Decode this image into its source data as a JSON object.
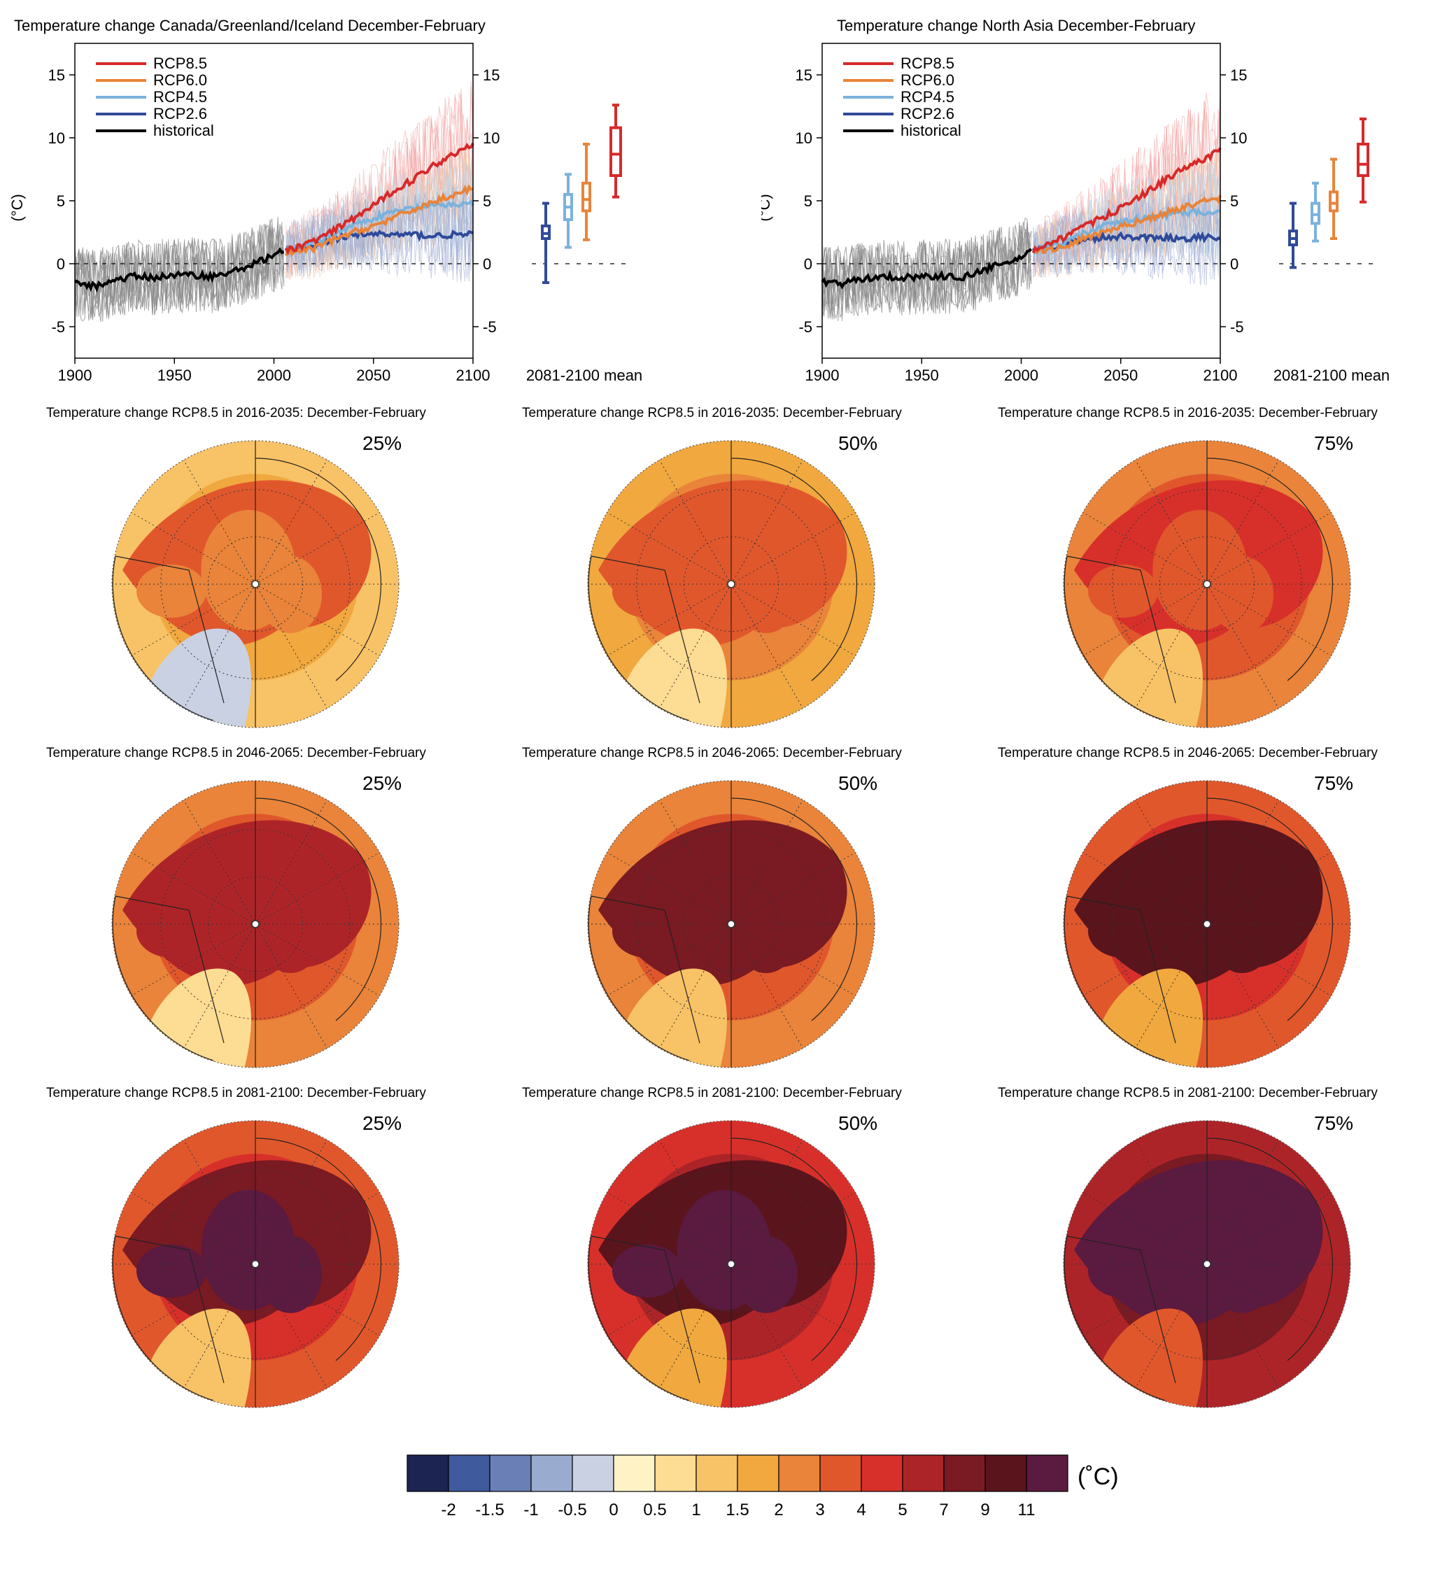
{
  "timeseries_panels": [
    {
      "title": "Temperature change Canada/Greenland/Iceland December-February",
      "ylabel": "(°C)",
      "boxplot_xlabel": "2081-2100 mean",
      "yticks": [
        "15",
        "10",
        "5",
        "0",
        "-5"
      ],
      "xticks": [
        "1900",
        "1950",
        "2000",
        "2050",
        "2100"
      ]
    },
    {
      "title": "Temperature change North Asia December-February",
      "ylabel": "(°C)",
      "boxplot_xlabel": "2081-2100 mean",
      "yticks": [
        "15",
        "10",
        "5",
        "0",
        "-5"
      ],
      "xticks": [
        "1900",
        "1950",
        "2000",
        "2050",
        "2100"
      ]
    }
  ],
  "legend": [
    {
      "label": "RCP8.5",
      "color": "#d62a2a"
    },
    {
      "label": "RCP6.0",
      "color": "#e8843a"
    },
    {
      "label": "RCP4.5",
      "color": "#7bb2dc"
    },
    {
      "label": "RCP2.6",
      "color": "#2f4a9a"
    },
    {
      "label": "historical",
      "color": "#000000"
    }
  ],
  "chart_data": [
    {
      "type": "line",
      "title": "Temperature change Canada/Greenland/Iceland December-February",
      "ylabel": "(°C)",
      "xlim": [
        1900,
        2100
      ],
      "ylim": [
        -7.5,
        17.5
      ],
      "series": [
        {
          "name": "historical",
          "x": [
            1900,
            1910,
            1920,
            1930,
            1940,
            1950,
            1960,
            1970,
            1980,
            1990,
            2000,
            2005
          ],
          "y": [
            -1.5,
            -1.8,
            -1.3,
            -1.0,
            -1.1,
            -0.9,
            -0.9,
            -1.0,
            -0.6,
            0.0,
            0.7,
            1.0
          ]
        },
        {
          "name": "RCP8.5",
          "x": [
            2006,
            2020,
            2030,
            2040,
            2050,
            2060,
            2070,
            2080,
            2090,
            2100
          ],
          "y": [
            1.0,
            1.8,
            2.6,
            3.6,
            4.6,
            5.8,
            6.7,
            7.8,
            8.7,
            9.6
          ]
        },
        {
          "name": "RCP6.0",
          "x": [
            2006,
            2020,
            2030,
            2040,
            2050,
            2060,
            2070,
            2080,
            2090,
            2100
          ],
          "y": [
            0.8,
            1.2,
            1.9,
            2.5,
            3.0,
            3.6,
            4.3,
            4.9,
            5.5,
            6.0
          ]
        },
        {
          "name": "RCP4.5",
          "x": [
            2006,
            2020,
            2030,
            2040,
            2050,
            2060,
            2070,
            2080,
            2090,
            2100
          ],
          "y": [
            1.0,
            1.6,
            2.4,
            3.1,
            3.6,
            4.1,
            4.4,
            4.6,
            4.7,
            4.8
          ]
        },
        {
          "name": "RCP2.6",
          "x": [
            2006,
            2020,
            2030,
            2040,
            2050,
            2060,
            2070,
            2080,
            2090,
            2100
          ],
          "y": [
            1.0,
            1.5,
            2.0,
            2.2,
            2.4,
            2.3,
            2.3,
            2.2,
            2.3,
            2.3
          ]
        }
      ],
      "boxplots_2081_2100_mean": [
        {
          "name": "RCP2.6",
          "whisker_low": -1.5,
          "q1": 2.0,
          "median": 2.4,
          "q3": 3.0,
          "whisker_high": 4.8
        },
        {
          "name": "RCP4.5",
          "whisker_low": 1.3,
          "q1": 3.5,
          "median": 4.5,
          "q3": 5.5,
          "whisker_high": 7.1
        },
        {
          "name": "RCP6.0",
          "whisker_low": 1.9,
          "q1": 4.2,
          "median": 5.1,
          "q3": 6.4,
          "whisker_high": 9.5
        },
        {
          "name": "RCP8.5",
          "whisker_low": 5.3,
          "q1": 7.0,
          "median": 8.7,
          "q3": 10.8,
          "whisker_high": 12.6
        }
      ]
    },
    {
      "type": "line",
      "title": "Temperature change North Asia December-February",
      "ylabel": "(°C)",
      "xlim": [
        1900,
        2100
      ],
      "ylim": [
        -7.5,
        17.5
      ],
      "series": [
        {
          "name": "historical",
          "x": [
            1900,
            1910,
            1920,
            1930,
            1940,
            1950,
            1960,
            1970,
            1980,
            1990,
            2000,
            2005
          ],
          "y": [
            -1.4,
            -1.6,
            -1.2,
            -1.0,
            -1.1,
            -1.0,
            -1.0,
            -1.1,
            -0.6,
            0.0,
            0.4,
            1.0
          ]
        },
        {
          "name": "RCP8.5",
          "x": [
            2006,
            2020,
            2030,
            2040,
            2050,
            2060,
            2070,
            2080,
            2090,
            2100
          ],
          "y": [
            1.0,
            2.0,
            2.8,
            3.6,
            4.4,
            5.4,
            6.4,
            7.4,
            8.2,
            9.0
          ]
        },
        {
          "name": "RCP6.0",
          "x": [
            2006,
            2020,
            2030,
            2040,
            2050,
            2060,
            2070,
            2080,
            2090,
            2100
          ],
          "y": [
            0.9,
            1.3,
            1.9,
            2.4,
            2.9,
            3.4,
            3.9,
            4.4,
            4.9,
            5.2
          ]
        },
        {
          "name": "RCP4.5",
          "x": [
            2006,
            2020,
            2030,
            2040,
            2050,
            2060,
            2070,
            2080,
            2090,
            2100
          ],
          "y": [
            1.0,
            1.6,
            2.3,
            2.9,
            3.3,
            3.6,
            3.8,
            4.0,
            4.1,
            4.2
          ]
        },
        {
          "name": "RCP2.6",
          "x": [
            2006,
            2020,
            2030,
            2040,
            2050,
            2060,
            2070,
            2080,
            2090,
            2100
          ],
          "y": [
            1.0,
            1.5,
            1.9,
            2.1,
            2.2,
            2.1,
            2.1,
            2.0,
            2.1,
            2.0
          ]
        }
      ],
      "boxplots_2081_2100_mean": [
        {
          "name": "RCP2.6",
          "whisker_low": -0.3,
          "q1": 1.5,
          "median": 2.0,
          "q3": 2.6,
          "whisker_high": 4.8
        },
        {
          "name": "RCP4.5",
          "whisker_low": 1.8,
          "q1": 3.2,
          "median": 3.9,
          "q3": 4.8,
          "whisker_high": 6.4
        },
        {
          "name": "RCP6.0",
          "whisker_low": 2.0,
          "q1": 4.2,
          "median": 4.8,
          "q3": 5.7,
          "whisker_high": 8.3
        },
        {
          "name": "RCP8.5",
          "whisker_low": 4.9,
          "q1": 7.0,
          "median": 7.9,
          "q3": 9.5,
          "whisker_high": 11.5
        }
      ]
    }
  ],
  "maps": [
    {
      "title": "Temperature change RCP8.5 in 2016-2035: December-February",
      "percentile": "25%"
    },
    {
      "title": "Temperature change RCP8.5 in 2016-2035: December-February",
      "percentile": "50%"
    },
    {
      "title": "Temperature change RCP8.5 in 2016-2035: December-February",
      "percentile": "75%"
    },
    {
      "title": "Temperature change RCP8.5 in 2046-2065: December-February",
      "percentile": "25%"
    },
    {
      "title": "Temperature change RCP8.5 in 2046-2065: December-February",
      "percentile": "50%"
    },
    {
      "title": "Temperature change RCP8.5 in 2046-2065: December-February",
      "percentile": "75%"
    },
    {
      "title": "Temperature change RCP8.5 in 2081-2100: December-February",
      "percentile": "25%"
    },
    {
      "title": "Temperature change RCP8.5 in 2081-2100: December-February",
      "percentile": "50%"
    },
    {
      "title": "Temperature change RCP8.5 in 2081-2100: December-February",
      "percentile": "75%"
    }
  ],
  "colorbar": {
    "unit": "(˚C)",
    "colors": [
      "#1c2452",
      "#3f5b9e",
      "#6a7fb5",
      "#9aabd0",
      "#c9d1e3",
      "#fff3c6",
      "#fddc93",
      "#f8c266",
      "#f0a83f",
      "#e9843a",
      "#e0572c",
      "#d7302a",
      "#ad2428",
      "#7a1a22",
      "#5a141c",
      "#5b1a3f"
    ],
    "labels": [
      "-2",
      "-1.5",
      "-1",
      "-0.5",
      "0",
      "0.5",
      "1",
      "1.5",
      "2",
      "3",
      "4",
      "5",
      "7",
      "9",
      "11"
    ]
  }
}
